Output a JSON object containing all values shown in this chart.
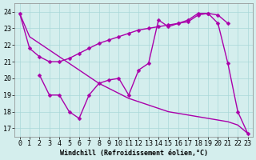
{
  "background_color": "#d4eeed",
  "grid_color": "#aad8d8",
  "line_color": "#aa00aa",
  "xlabel": "Windchill (Refroidissement éolien,°C)",
  "xlim": [
    -0.5,
    23.5
  ],
  "ylim": [
    16.5,
    24.5
  ],
  "yticks": [
    17,
    18,
    19,
    20,
    21,
    22,
    23,
    24
  ],
  "xticks": [
    0,
    1,
    2,
    3,
    4,
    5,
    6,
    7,
    8,
    9,
    10,
    11,
    12,
    13,
    14,
    15,
    16,
    17,
    18,
    19,
    20,
    21,
    22,
    23
  ],
  "font_size": 6,
  "line_width": 1.0,
  "marker_size": 2.5,
  "lineA_x": [
    0,
    1,
    2,
    3,
    4,
    5,
    6,
    7,
    8,
    9,
    10,
    11,
    12,
    13,
    14,
    15,
    16,
    17,
    18,
    19,
    20,
    21
  ],
  "lineA_y": [
    23.9,
    21.8,
    21.3,
    21.0,
    21.0,
    21.2,
    21.5,
    21.8,
    22.1,
    22.3,
    22.5,
    22.7,
    22.9,
    23.0,
    23.1,
    23.2,
    23.3,
    23.4,
    23.8,
    23.9,
    23.8,
    23.3
  ],
  "lineB_x": [
    2,
    3,
    4,
    5,
    6,
    7,
    8,
    9,
    10,
    11,
    12,
    13,
    14,
    15,
    16,
    17,
    18,
    19,
    20,
    21,
    22,
    23
  ],
  "lineB_y": [
    20.2,
    19.0,
    19.0,
    18.0,
    17.6,
    19.0,
    19.7,
    19.9,
    20.0,
    19.0,
    20.5,
    20.9,
    23.5,
    23.1,
    23.3,
    23.5,
    23.9,
    23.9,
    23.3,
    20.9,
    18.0,
    16.7
  ],
  "lineC_x": [
    0,
    1,
    2,
    3,
    4,
    5,
    6,
    7,
    8,
    9,
    10,
    11,
    12,
    13,
    14,
    15,
    16,
    17,
    18,
    19,
    20,
    21,
    22,
    23
  ],
  "lineC_y": [
    23.9,
    22.5,
    22.1,
    21.7,
    21.3,
    20.9,
    20.5,
    20.1,
    19.7,
    19.4,
    19.1,
    18.8,
    18.6,
    18.4,
    18.2,
    18.0,
    17.9,
    17.8,
    17.7,
    17.6,
    17.5,
    17.4,
    17.2,
    16.7
  ]
}
